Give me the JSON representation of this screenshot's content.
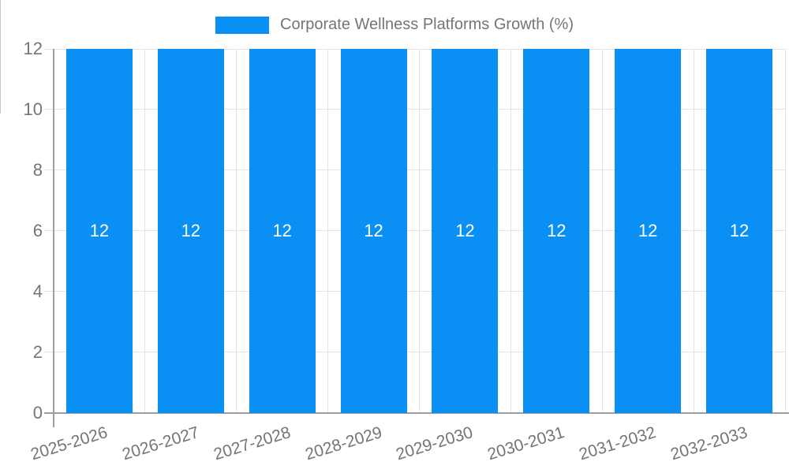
{
  "legend": {
    "label": "Corporate Wellness Platforms Growth (%)"
  },
  "chart_data": {
    "type": "bar",
    "title": "Corporate Wellness Platforms Growth (%)",
    "categories": [
      "2025-2026",
      "2026-2027",
      "2027-2028",
      "2028-2029",
      "2029-2030",
      "2030-2031",
      "2031-2032",
      "2032-2033"
    ],
    "series": [
      {
        "name": "Corporate Wellness Platforms Growth (%)",
        "values": [
          12,
          12,
          12,
          12,
          12,
          12,
          12,
          12
        ]
      }
    ],
    "data_labels": [
      "12",
      "12",
      "12",
      "12",
      "12",
      "12",
      "12",
      "12"
    ],
    "xlabel": "",
    "ylabel": "",
    "ylim": [
      0,
      12
    ],
    "y_ticks": [
      0,
      2,
      4,
      6,
      8,
      10,
      12
    ],
    "grid": "on",
    "legend_position": "top-center",
    "colors": {
      "bar": "#0a90f5",
      "bar_label": "#ffffff",
      "axis_line": "#9e9e9e",
      "gridline": "#e4e4e4",
      "tick": "#c6c6c6",
      "text": "#757575",
      "background": "#ffffff"
    }
  }
}
